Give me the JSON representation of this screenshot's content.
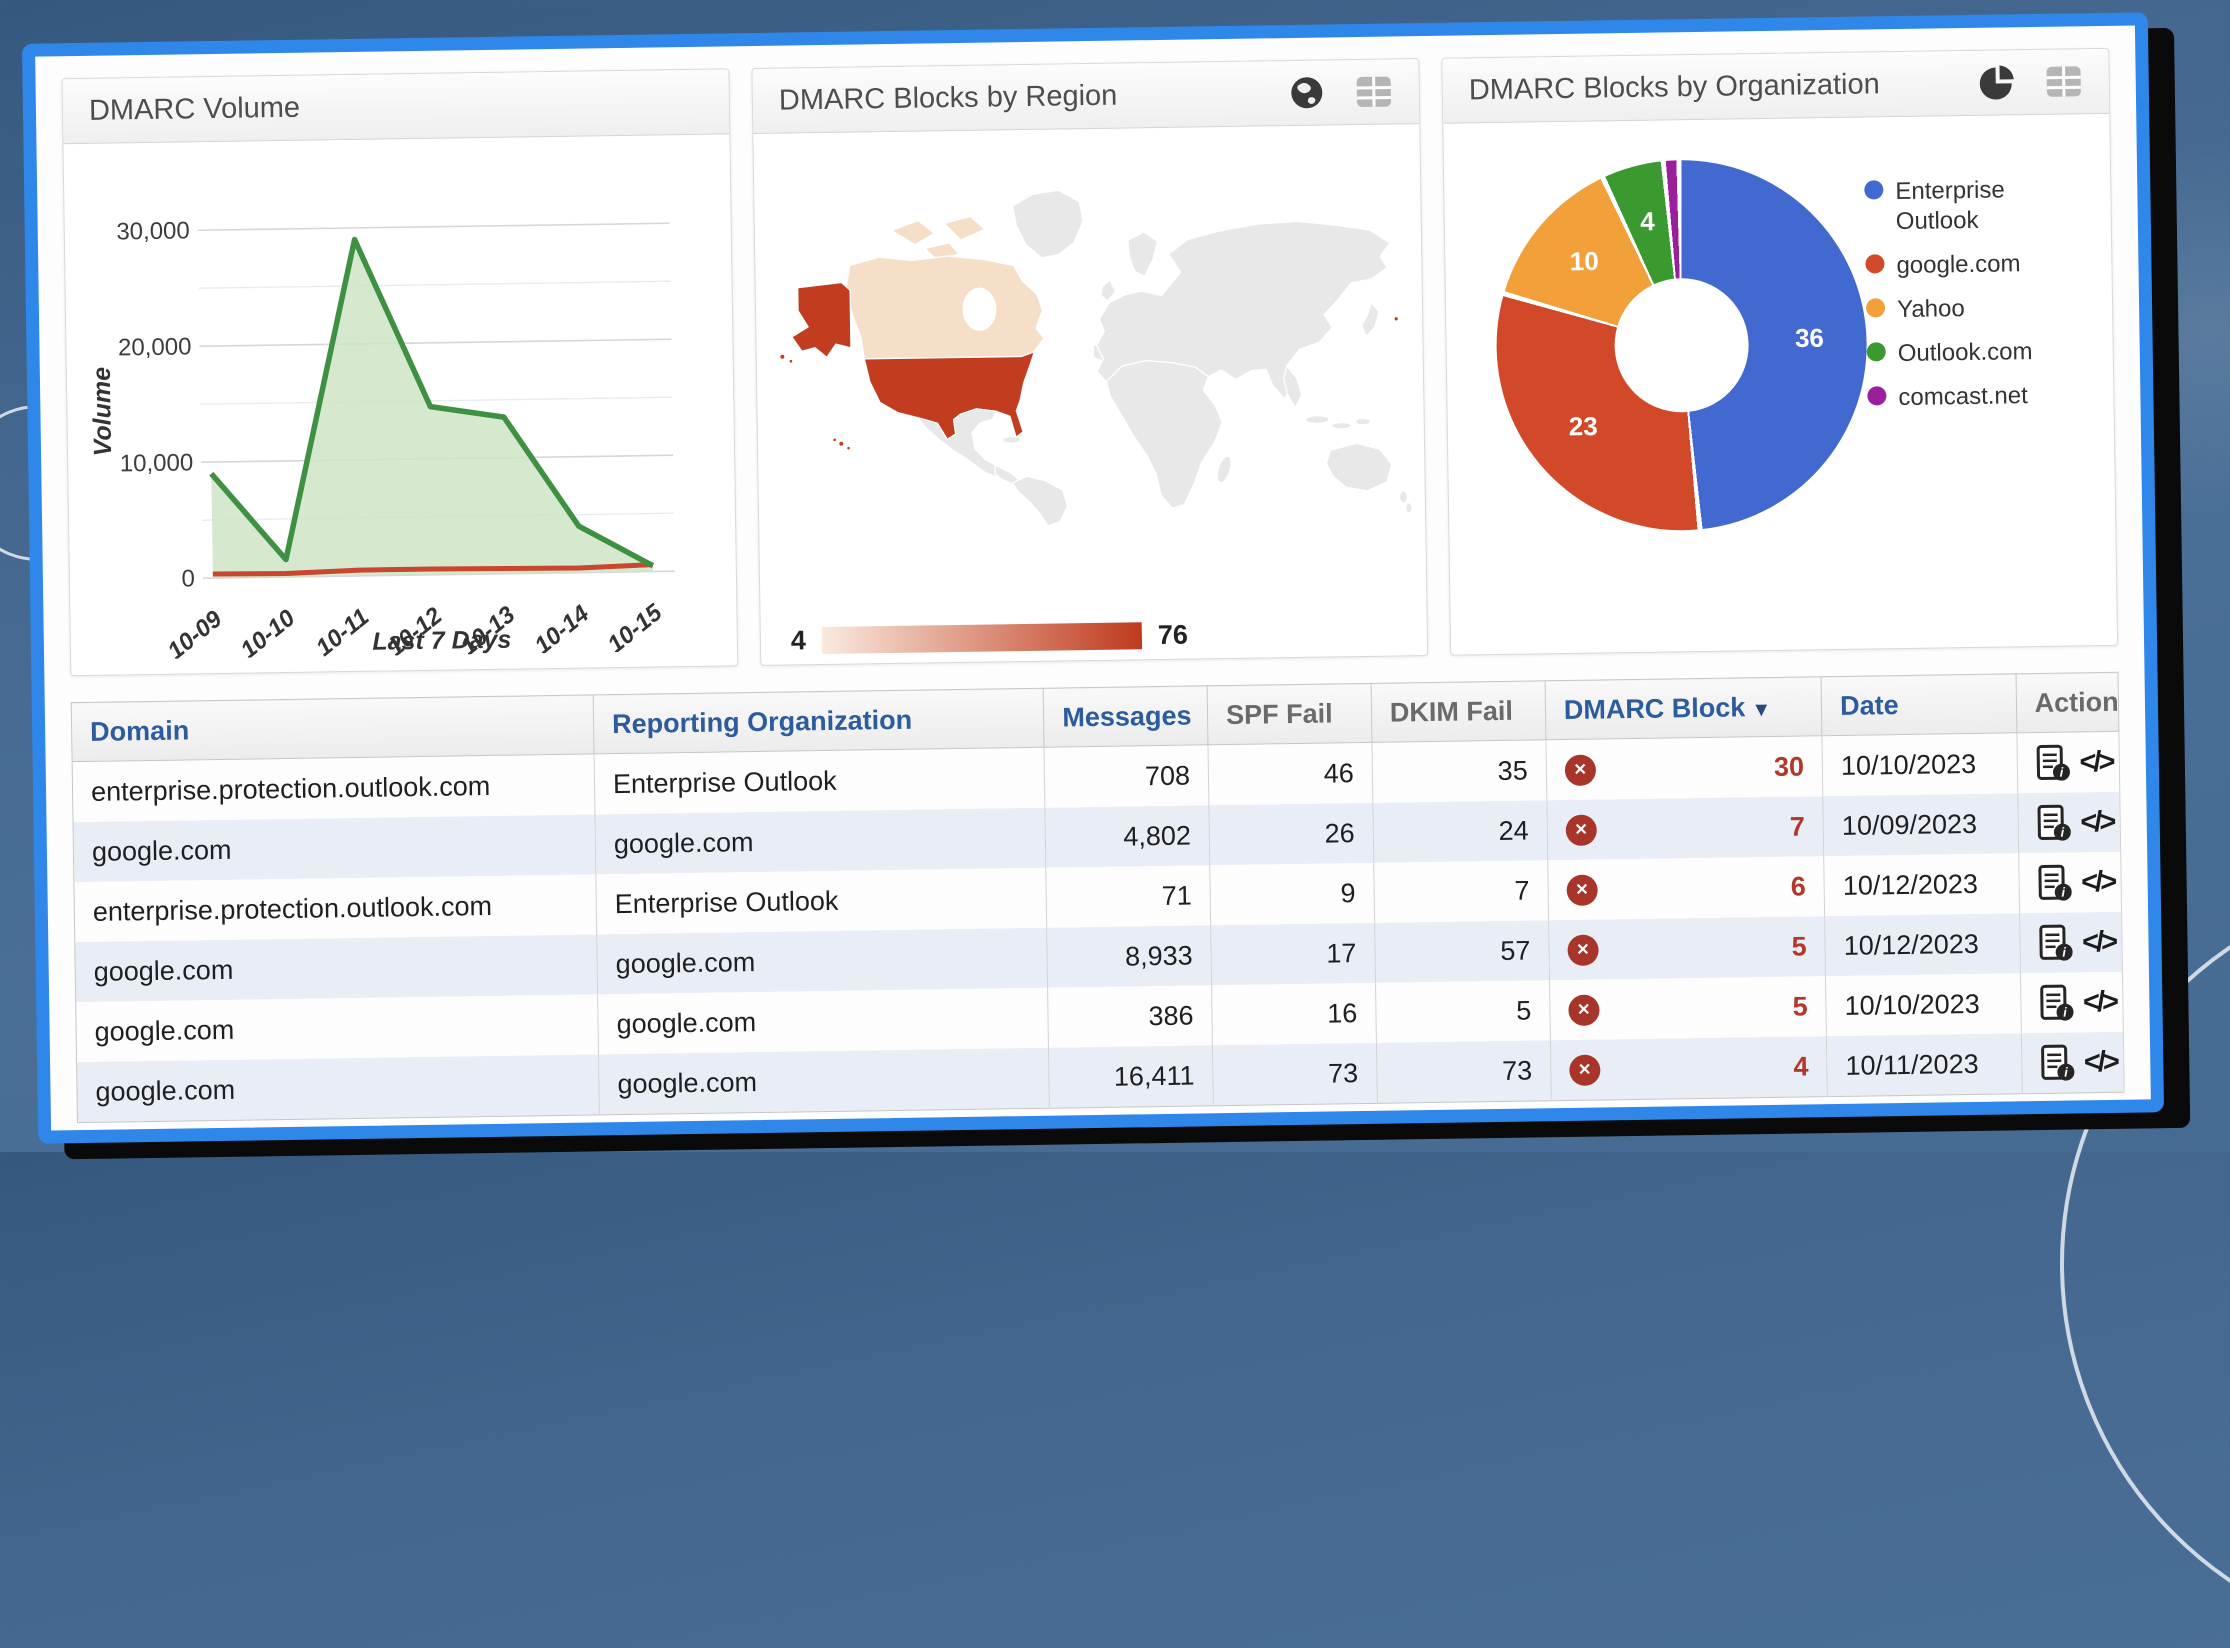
{
  "background": {
    "canvas_color": "#44678f"
  },
  "dashboard": {
    "border_color": "#2f87ea"
  },
  "panels": {
    "volume": {
      "title": "DMARC Volume"
    },
    "region": {
      "title": "DMARC Blocks by Region",
      "map": {
        "us_color": "#c23c20",
        "canada_color": "#f5dfc9",
        "land_color": "#e8e8e8",
        "gradient_start": "#faeade",
        "gradient_end": "#bf3a1e"
      }
    },
    "organization": {
      "title": "DMARC Blocks by Organization"
    }
  },
  "chart_data": [
    {
      "type": "area",
      "title": "DMARC Volume",
      "xlabel": "Last 7 Days",
      "ylabel": "Volume",
      "x": [
        "10-09",
        "10-10",
        "10-11",
        "10-12",
        "10-13",
        "10-14",
        "10-15"
      ],
      "y_ticks": [
        "0",
        "10,000",
        "20,000",
        "30,000"
      ],
      "ylim": [
        0,
        30000
      ],
      "grid": true,
      "legend_position": "none",
      "series": [
        {
          "color": "#3e9142",
          "fill": "#cfe4c4",
          "values": [
            9000,
            1500,
            29000,
            14500,
            13500,
            4000,
            500
          ]
        },
        {
          "color": "#c9472e",
          "values": [
            350,
            300,
            500,
            500,
            450,
            400,
            600
          ]
        }
      ]
    },
    {
      "type": "choropleth",
      "title": "DMARC Blocks by Region",
      "range": [
        4,
        76
      ],
      "regions": [
        {
          "name": "United States",
          "value": 76
        },
        {
          "name": "Canada",
          "value": 6
        }
      ]
    },
    {
      "type": "pie",
      "donut": true,
      "title": "DMARC Blocks by Organization",
      "legend_position": "right",
      "labels": [
        "Enterprise Outlook",
        "google.com",
        "Yahoo",
        "Outlook.com",
        "comcast.net"
      ],
      "values": [
        36,
        23,
        10,
        4,
        1
      ],
      "colors": [
        "#4169cf",
        "#d2492a",
        "#f2a13a",
        "#3a9a2f",
        "#9b1f9b"
      ]
    }
  ],
  "table": {
    "columns": [
      "Domain",
      "Reporting Organization",
      "Messages",
      "SPF Fail",
      "DKIM Fail",
      "DMARC Block",
      "Date",
      "Action"
    ],
    "sort_arrow": "▼",
    "icons": {
      "block_x": "✕",
      "doc_info": "i",
      "code": "</>"
    },
    "rows": [
      {
        "domain": "enterprise.protection.outlook.com",
        "org": "Enterprise Outlook",
        "messages": "708",
        "spf_fail": "46",
        "dkim_fail": "35",
        "dmarc_block": "30",
        "date": "10/10/2023"
      },
      {
        "domain": "google.com",
        "org": "google.com",
        "messages": "4,802",
        "spf_fail": "26",
        "dkim_fail": "24",
        "dmarc_block": "7",
        "date": "10/09/2023"
      },
      {
        "domain": "enterprise.protection.outlook.com",
        "org": "Enterprise Outlook",
        "messages": "71",
        "spf_fail": "9",
        "dkim_fail": "7",
        "dmarc_block": "6",
        "date": "10/12/2023"
      },
      {
        "domain": "google.com",
        "org": "google.com",
        "messages": "8,933",
        "spf_fail": "17",
        "dkim_fail": "57",
        "dmarc_block": "5",
        "date": "10/12/2023"
      },
      {
        "domain": "google.com",
        "org": "google.com",
        "messages": "386",
        "spf_fail": "16",
        "dkim_fail": "5",
        "dmarc_block": "5",
        "date": "10/10/2023"
      },
      {
        "domain": "google.com",
        "org": "google.com",
        "messages": "16,411",
        "spf_fail": "73",
        "dkim_fail": "73",
        "dmarc_block": "4",
        "date": "10/11/2023"
      }
    ]
  }
}
